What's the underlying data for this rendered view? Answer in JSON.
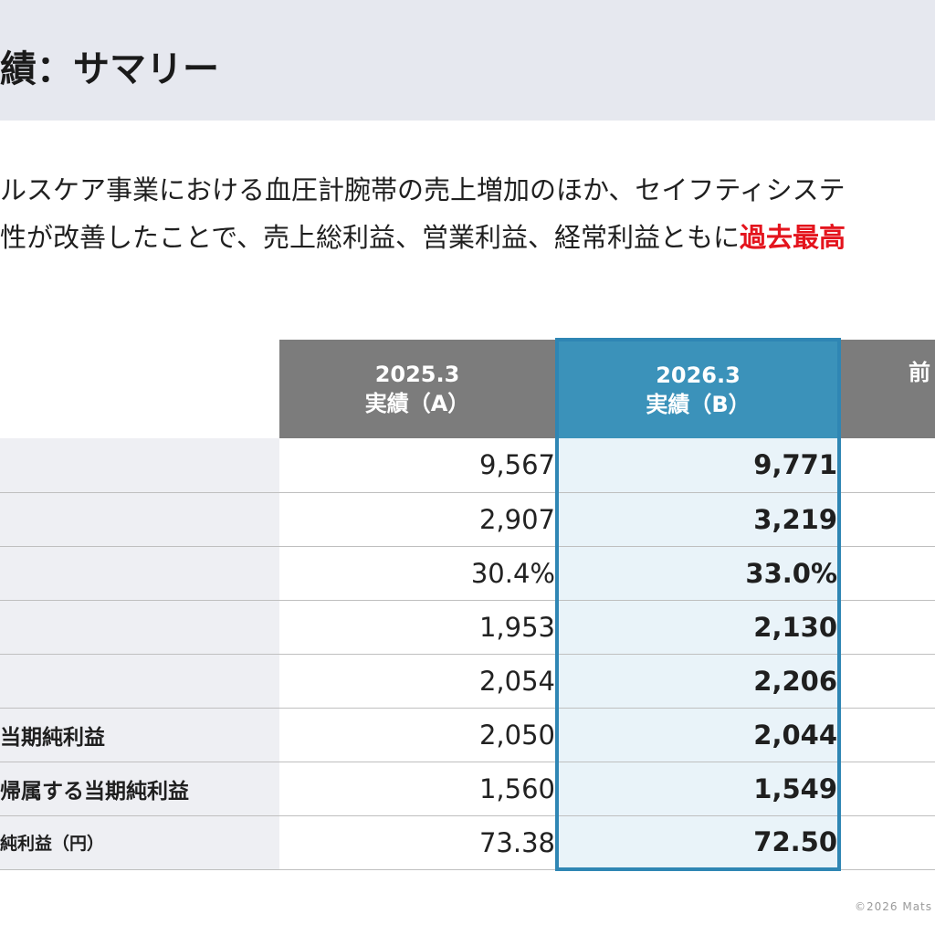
{
  "header": {
    "title": "績：サマリー"
  },
  "description": {
    "line1": "ルスケア事業における血圧計腕帯の売上増加のほか、セイフティシステ",
    "line2_prefix": "性が改善したことで、売上総利益、営業利益、経常利益ともに",
    "line2_highlight": "過去最高"
  },
  "table": {
    "columns": {
      "prev_year": "2025.3",
      "prev_sub": "実績（A）",
      "curr_year": "2026.3",
      "curr_sub": "実績（B）",
      "diff": "前"
    },
    "rows": [
      {
        "label": "",
        "prev": "9,567",
        "curr": "9,771"
      },
      {
        "label": "",
        "prev": "2,907",
        "curr": "3,219"
      },
      {
        "label": "",
        "prev": "30.4%",
        "curr": "33.0%"
      },
      {
        "label": "",
        "prev": "1,953",
        "curr": "2,130"
      },
      {
        "label": "",
        "prev": "2,054",
        "curr": "2,206"
      },
      {
        "label": "当期純利益",
        "prev": "2,050",
        "curr": "2,044"
      },
      {
        "label": "帰属する当期純利益",
        "prev": "1,560",
        "curr": "1,549"
      },
      {
        "label": "純利益（円）",
        "prev": "73.38",
        "curr": "72.50"
      }
    ]
  },
  "footer": {
    "copyright": "©2026 Mats"
  }
}
